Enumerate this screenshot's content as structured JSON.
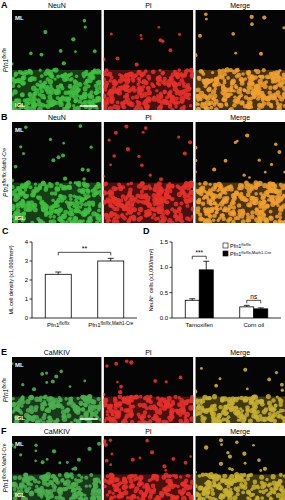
{
  "micrographs": [
    {
      "panel_label": "A",
      "genotype": "Pfn1flx/flx",
      "layers": [
        "ML",
        "IGL"
      ],
      "channels": [
        {
          "name": "NeuN",
          "color": "#3fbf3f"
        },
        {
          "name": "PI",
          "color": "#e8302a"
        },
        {
          "name": "Merge",
          "color": "#f0a030"
        }
      ]
    },
    {
      "panel_label": "B",
      "genotype": "Pfn1flx/flx,Math1-Cre",
      "layers": [
        "ML",
        "IGL"
      ],
      "channels": [
        {
          "name": "NeuN",
          "color": "#3fbf3f"
        },
        {
          "name": "PI",
          "color": "#e8302a"
        },
        {
          "name": "Merge",
          "color": "#f0a030"
        }
      ]
    },
    {
      "panel_label": "E",
      "genotype": "Pfn1flx/flx",
      "layers": [
        "ML",
        "IGL"
      ],
      "channels": [
        {
          "name": "CaMKIV",
          "color": "#4caf50"
        },
        {
          "name": "PI",
          "color": "#e8302a"
        },
        {
          "name": "Merge",
          "color": "#c8b030"
        }
      ]
    },
    {
      "panel_label": "F",
      "genotype": "Pfn1flx/flx,Math1-Cre",
      "layers": [
        "ML",
        "IGL"
      ],
      "channels": [
        {
          "name": "CaMKIV",
          "color": "#4caf50"
        },
        {
          "name": "PI",
          "color": "#e8302a"
        },
        {
          "name": "Merge",
          "color": "#c8b030"
        }
      ]
    }
  ],
  "chart_data": [
    {
      "panel_label": "C",
      "type": "bar",
      "y_label": "ML cell density (x1,000/mm²)",
      "categories": [
        "Pfn1flx/flx",
        "Pfn1flx/flx,Math1-Cre"
      ],
      "values": [
        2.3,
        3.0
      ],
      "errors": [
        0.12,
        0.14
      ],
      "colors": [
        "#ffffff",
        "#ffffff"
      ],
      "ylim": [
        0,
        4
      ],
      "yticks": [
        0,
        1,
        2,
        3,
        4
      ],
      "annotations": [
        {
          "text": "**",
          "between": [
            0,
            1
          ]
        }
      ]
    },
    {
      "panel_label": "D",
      "type": "bar",
      "y_label": "NeuN⁺ cells (x1,000/mm²)",
      "categories": [
        "Tamoxifen",
        "Corn oil"
      ],
      "series": [
        {
          "name": "Pfn1flx/flx",
          "color": "#ffffff",
          "values": [
            0.35,
            0.22
          ],
          "errors": [
            0.03,
            0.03
          ]
        },
        {
          "name": "Pfn1flx/flx,Math1-Cre",
          "color": "#000000",
          "values": [
            0.95,
            0.18
          ],
          "errors": [
            0.17,
            0.02
          ]
        }
      ],
      "ylim": [
        0,
        1.5
      ],
      "yticks": [
        {
          "value": 0,
          "label": "0.0"
        },
        {
          "value": 0.5,
          "label": "0.5"
        },
        {
          "value": 1,
          "label": "1.0"
        },
        {
          "value": 1.5,
          "label": "1.5"
        }
      ],
      "legend": "top-right",
      "annotations": [
        {
          "text": "***",
          "category": 0
        },
        {
          "text": "ns",
          "category": 1
        }
      ]
    }
  ]
}
